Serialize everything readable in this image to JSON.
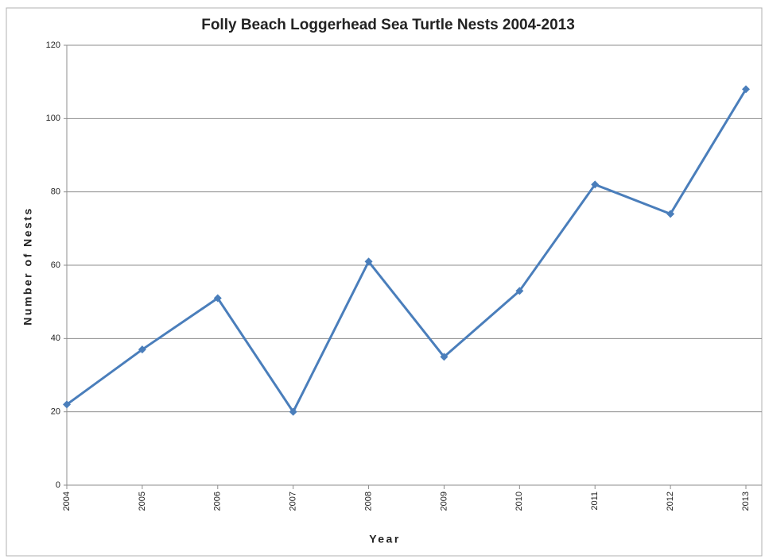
{
  "chart_data": {
    "type": "line",
    "title": "Folly Beach Loggerhead Sea Turtle Nests 2004-2013",
    "x_label": "Year",
    "y_label": "Number of Nests",
    "categories": [
      "2004",
      "2005",
      "2006",
      "2007",
      "2008",
      "2009",
      "2010",
      "2011",
      "2012",
      "2013"
    ],
    "series": [
      {
        "name": "Nests",
        "color": "#4a7ebb",
        "values": [
          22,
          37,
          51,
          20,
          61,
          35,
          53,
          82,
          74,
          108
        ]
      }
    ],
    "ylim": [
      0,
      120
    ],
    "yticks": [
      0,
      20,
      40,
      60,
      80,
      100,
      120
    ],
    "grid": true
  }
}
